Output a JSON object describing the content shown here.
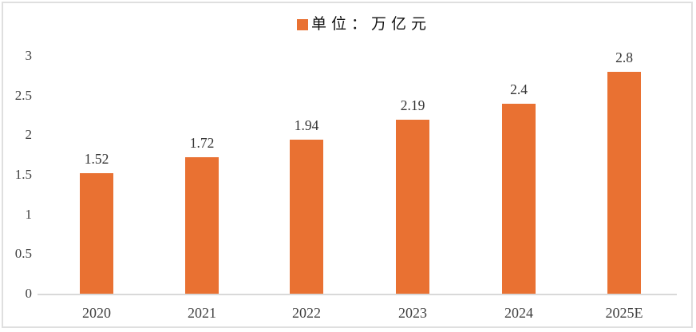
{
  "chart_data": {
    "type": "bar",
    "title": "",
    "legend": "单位：万亿元",
    "categories": [
      "2020",
      "2021",
      "2022",
      "2023",
      "2024",
      "2025E"
    ],
    "values": [
      1.52,
      1.72,
      1.94,
      2.19,
      2.4,
      2.8
    ],
    "value_labels": [
      "1.52",
      "1.72",
      "1.94",
      "2.19",
      "2.4",
      "2.8"
    ],
    "yticks": [
      "0",
      "0.5",
      "1",
      "1.5",
      "2",
      "2.5",
      "3"
    ],
    "ylim": [
      0,
      3
    ],
    "grid": false,
    "legend_position": "top-center",
    "bar_color": "#E97132",
    "axis_color": "#D9D9D9",
    "tick_text_color": "#3F3F3F",
    "label_text_color": "#333333"
  }
}
